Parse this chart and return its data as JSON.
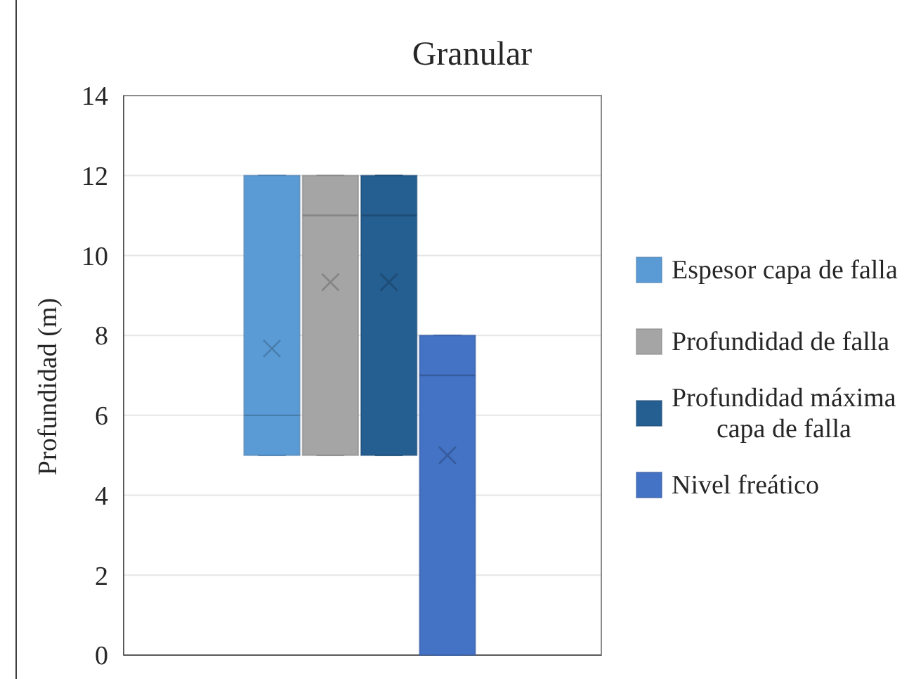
{
  "chart_data": {
    "type": "box",
    "title": "Granular",
    "ylabel": "Profundidad (m)",
    "categories": [
      null
    ],
    "series": [
      {
        "name": "Espesor capa de falla",
        "color": "#5b9bd5",
        "boxes": [
          {
            "low": 5,
            "q1": 5,
            "median": 6,
            "q3": 12,
            "high": 12,
            "mean": 7.67
          }
        ]
      },
      {
        "name": "Profundidad de falla",
        "color": "#a5a5a5",
        "boxes": [
          {
            "low": 5,
            "q1": 5,
            "median": 11,
            "q3": 12,
            "high": 12,
            "mean": 9.33
          }
        ]
      },
      {
        "name": "Profundidad máxima capa de falla",
        "color": "#255e91",
        "boxes": [
          {
            "low": 5,
            "q1": 5,
            "median": 11,
            "q3": 12,
            "high": 12,
            "mean": 9.33
          }
        ]
      },
      {
        "name": "Nivel freático",
        "color": "#4472c4",
        "boxes": [
          {
            "low": 0,
            "q1": 0,
            "median": 7,
            "q3": 8,
            "high": 8,
            "mean": 5
          }
        ]
      }
    ],
    "ylim": [
      0,
      14
    ],
    "yticks": [
      0,
      2,
      4,
      6,
      8,
      10,
      12,
      14
    ],
    "grid": "y",
    "legend": "right",
    "tick_labels": "y"
  }
}
